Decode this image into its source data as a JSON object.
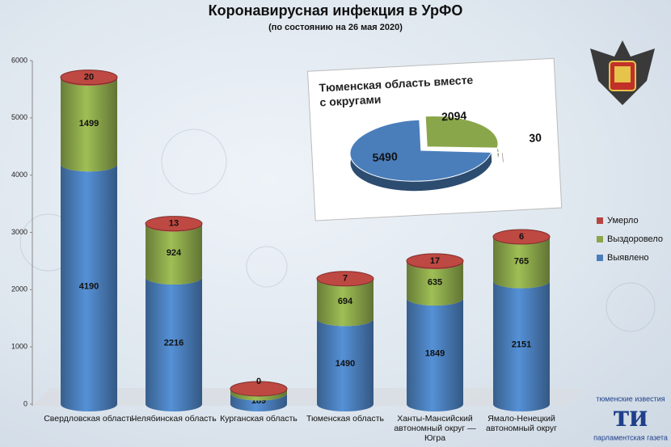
{
  "chart_data": [
    {
      "type": "bar",
      "stacked": true,
      "title": "Коронавирусная инфекция в УрФО",
      "subtitle": "(по состоянию на 26 мая 2020)",
      "categories": [
        "Свердловская область",
        "Челябинская область",
        "Курганская область",
        "Тюменская область",
        "Ханты-Мансийский автономный округ — Югра",
        "Ямало-Ненецкий автономный округ"
      ],
      "series": [
        {
          "name": "Выявлено",
          "color": "#4a7ebb",
          "values": [
            4190,
            2216,
            189,
            1490,
            1849,
            2151
          ]
        },
        {
          "name": "Выздоровело",
          "color": "#8aa64a",
          "values": [
            1499,
            924,
            80,
            694,
            635,
            765
          ]
        },
        {
          "name": "Умерло",
          "color": "#b5453f",
          "values": [
            20,
            13,
            0,
            7,
            17,
            6
          ]
        }
      ],
      "ylim": [
        0,
        6000
      ],
      "yticks": [
        0,
        1000,
        2000,
        3000,
        4000,
        5000,
        6000
      ],
      "legend": "right"
    },
    {
      "type": "pie",
      "title": "Тюменская область вместе с округами",
      "categories": [
        "Выздоровело",
        "Умерло",
        "Выявлено"
      ],
      "values": [
        2094,
        30,
        5490
      ],
      "colors": [
        "#8aa64a",
        "#7a1a14",
        "#4a7ebb"
      ]
    }
  ],
  "logo": {
    "top": "тюменские известия",
    "main": "ти",
    "bottom": "парламентская газета"
  }
}
